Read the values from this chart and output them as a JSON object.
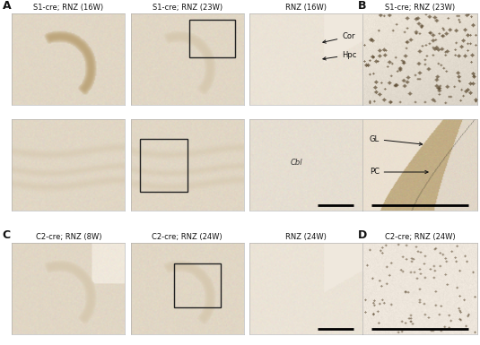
{
  "figsize": [
    5.35,
    3.85
  ],
  "dpi": 100,
  "background_color": "#ffffff",
  "panel_A_label": "A",
  "panel_B_label": "B",
  "panel_C_label": "C",
  "panel_D_label": "D",
  "row1_titles": [
    "S1-cre; RNZ (16W)",
    "S1-cre; RNZ (23W)",
    "RNZ (16W)"
  ],
  "row3_titles": [
    "C2-cre; RNZ (8W)",
    "C2-cre; RNZ (24W)",
    "RNZ (24W)"
  ],
  "panel_B_title": "S1-cre; RNZ (23W)",
  "panel_D_title": "C2-cre; RNZ (24W)",
  "text_color": "#111111",
  "title_fontsize": 6.0,
  "panel_label_fontsize": 9,
  "annot_fontsize": 6.0,
  "scale_bar_color": "#000000",
  "box_color": "#222222",
  "bg_cream": [
    0.94,
    0.91,
    0.86
  ],
  "tissue_light": [
    0.88,
    0.84,
    0.77
  ],
  "tissue_medium": [
    0.82,
    0.76,
    0.65
  ],
  "tissue_dark": [
    0.72,
    0.62,
    0.44
  ],
  "dots_color": [
    0.35,
    0.28,
    0.18
  ]
}
